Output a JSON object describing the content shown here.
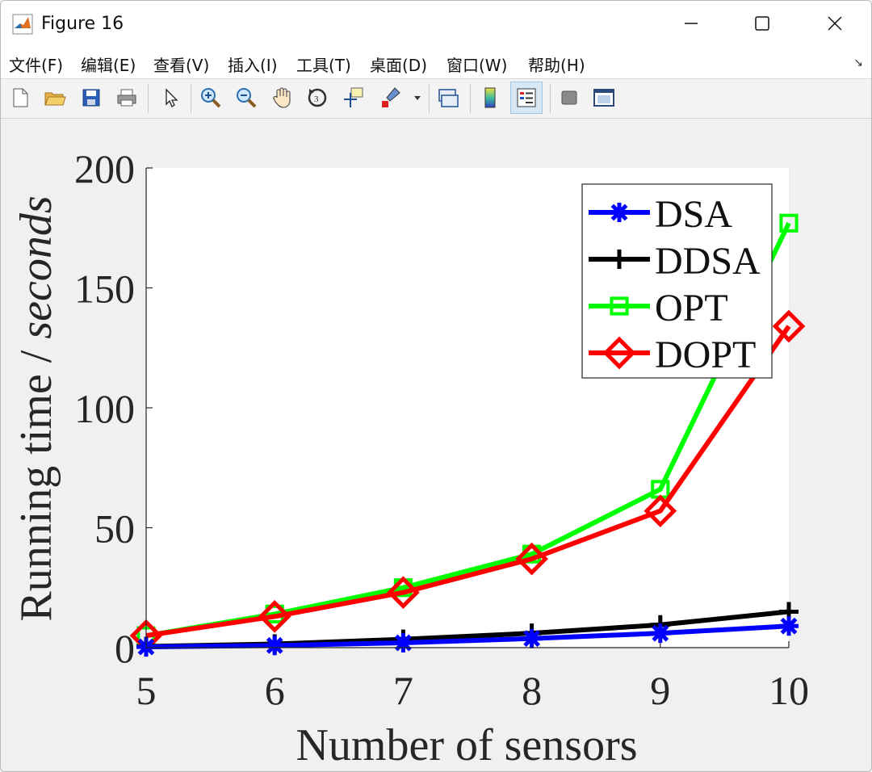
{
  "window": {
    "title": "Figure 16"
  },
  "menu": [
    "文件(F)",
    "编辑(E)",
    "查看(V)",
    "插入(I)",
    "工具(T)",
    "桌面(D)",
    "窗口(W)",
    "帮助(H)"
  ],
  "toolbar_icons": [
    "new-file-icon",
    "open-folder-icon",
    "save-icon",
    "print-icon",
    "pointer-icon",
    "zoom-in-icon",
    "zoom-out-icon",
    "pan-hand-icon",
    "rotate-3d-icon",
    "data-cursor-icon",
    "brush-icon",
    "link-plot-icon",
    "colorbar-icon",
    "legend-icon",
    "hide-plot-tools-icon",
    "show-plot-tools-icon"
  ],
  "colors": {
    "DSA": "#0000ff",
    "DDSA": "#000000",
    "OPT": "#00ff00",
    "DOPT": "#ff0000"
  },
  "chart_data": {
    "type": "line",
    "xlabel": "Number of sensors",
    "ylabel_prefix": "Running time / ",
    "ylabel_italic": "seconds",
    "x": [
      5,
      6,
      7,
      8,
      9,
      10
    ],
    "xlim": [
      5,
      10
    ],
    "ylim": [
      0,
      200
    ],
    "xticks": [
      "5",
      "6",
      "7",
      "8",
      "9",
      "10"
    ],
    "yticks": [
      "0",
      "50",
      "100",
      "150",
      "200"
    ],
    "grid": false,
    "legend_position": "top-right",
    "series": [
      {
        "name": "DSA",
        "marker": "asterisk",
        "values": [
          0.3,
          0.9,
          2.0,
          3.8,
          6.0,
          9.0
        ]
      },
      {
        "name": "DDSA",
        "marker": "plus",
        "values": [
          0.5,
          1.5,
          3.5,
          6.0,
          9.5,
          15.0
        ]
      },
      {
        "name": "OPT",
        "marker": "square",
        "values": [
          5.0,
          14.0,
          25.0,
          39.0,
          66.0,
          177.0
        ]
      },
      {
        "name": "DOPT",
        "marker": "diamond",
        "values": [
          5.0,
          13.0,
          23.0,
          37.0,
          57.0,
          134.0
        ]
      }
    ]
  }
}
